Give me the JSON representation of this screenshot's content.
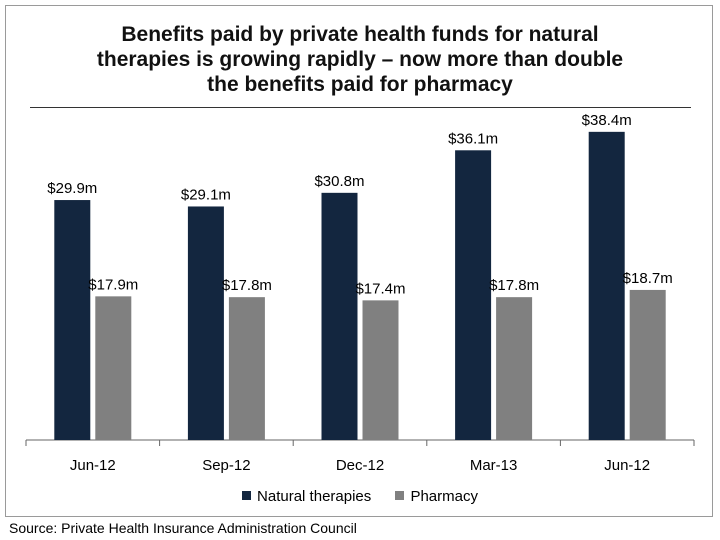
{
  "chart_data": {
    "type": "bar",
    "title": "Benefits paid by private health funds for natural therapies is growing rapidly – now more than double the benefits paid for pharmacy",
    "title_lines": [
      "Benefits paid by private health funds for natural",
      "therapies is growing rapidly – now more than double",
      "the benefits paid for pharmacy"
    ],
    "categories": [
      "Jun-12",
      "Sep-12",
      "Dec-12",
      "Mar-13",
      "Jun-12"
    ],
    "series": [
      {
        "name": "Natural therapies",
        "color": "#13263f",
        "values": [
          29.9,
          29.1,
          30.8,
          36.1,
          38.4
        ],
        "labels": [
          "$29.9m",
          "$29.1m",
          "$30.8m",
          "$36.1m",
          "$38.4m"
        ]
      },
      {
        "name": "Pharmacy",
        "color": "#808080",
        "values": [
          17.9,
          17.8,
          17.4,
          17.8,
          18.7
        ],
        "labels": [
          "$17.9m",
          "$17.8m",
          "$17.4m",
          "$17.8m",
          "$18.7m"
        ]
      }
    ],
    "ylim": [
      0,
      40
    ],
    "grid": false,
    "legend_position": "bottom",
    "source": "Source: Private Health Insurance Administration Council"
  }
}
